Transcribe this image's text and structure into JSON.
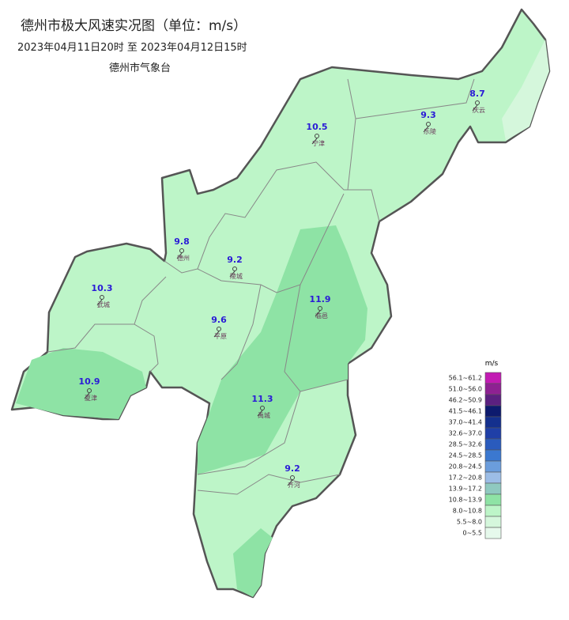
{
  "title": "德州市极大风速实况图（单位：m/s）",
  "subtitle": "2023年04月11日20时  至  2023年04月12日15时",
  "issuer": "德州市气象台",
  "stations": [
    {
      "name": "德州",
      "value": 9.8
    },
    {
      "name": "陵城",
      "value": 9.2
    },
    {
      "name": "武城",
      "value": 10.3
    },
    {
      "name": "夏津",
      "value": 10.9
    },
    {
      "name": "平原",
      "value": 9.6
    },
    {
      "name": "临邑",
      "value": 11.9
    },
    {
      "name": "禹城",
      "value": 11.3
    },
    {
      "name": "齐河",
      "value": 9.2
    },
    {
      "name": "宁津",
      "value": 10.5
    },
    {
      "name": "乐陵",
      "value": 9.3
    },
    {
      "name": "庆云",
      "value": 8.7
    }
  ],
  "legend": {
    "title": "m/s",
    "entries": [
      {
        "label": "56.1~61.2",
        "color": "#c21bb3"
      },
      {
        "label": "51.0~56.0",
        "color": "#8e2192"
      },
      {
        "label": "46.2~50.9",
        "color": "#5b2080"
      },
      {
        "label": "41.5~46.1",
        "color": "#0d1a6e"
      },
      {
        "label": "37.0~41.4",
        "color": "#14308e"
      },
      {
        "label": "32.6~37.0",
        "color": "#1f3fa7"
      },
      {
        "label": "28.5~32.6",
        "color": "#2a5bbd"
      },
      {
        "label": "24.5~28.5",
        "color": "#3b78d0"
      },
      {
        "label": "20.8~24.5",
        "color": "#6b9ddc"
      },
      {
        "label": "17.2~20.8",
        "color": "#9cbde6"
      },
      {
        "label": "13.9~17.2",
        "color": "#8fc9c0"
      },
      {
        "label": "10.8~13.9",
        "color": "#8ee3a5"
      },
      {
        "label": "8.0~10.8",
        "color": "#bdf5c8"
      },
      {
        "label": "5.5~8.0",
        "color": "#d5f7dc"
      },
      {
        "label": "0~5.5",
        "color": "#e6f9ec"
      }
    ]
  }
}
